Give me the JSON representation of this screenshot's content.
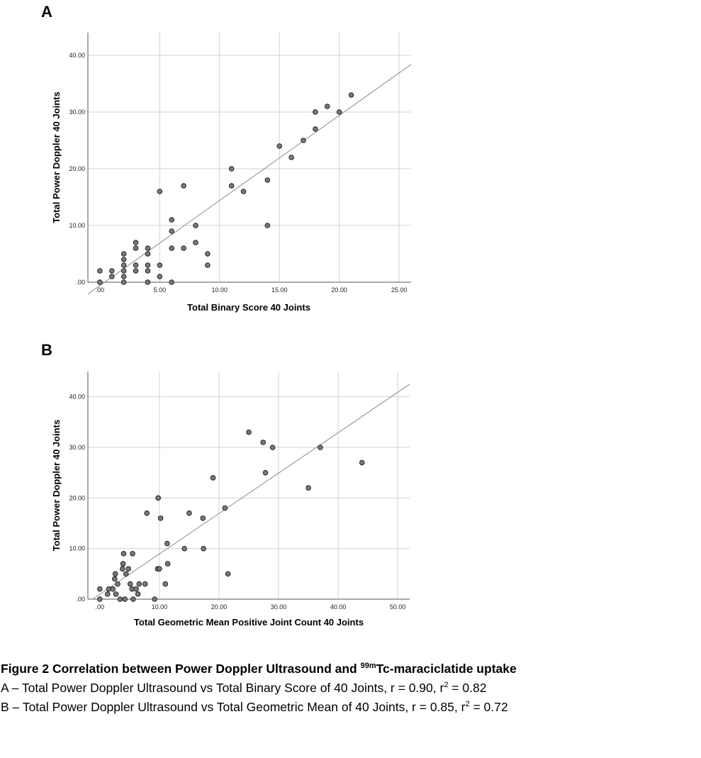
{
  "panels": {
    "a_label": "A",
    "b_label": "B"
  },
  "chart_data": [
    {
      "type": "scatter",
      "xlabel": "Total Binary Score 40 Joints",
      "ylabel": "Total Power Doppler 40 Joints",
      "xlim": [
        -1,
        26
      ],
      "ylim": [
        0,
        44
      ],
      "xticks": [
        0,
        5,
        10,
        15,
        20,
        25
      ],
      "xtick_labels": [
        ".00",
        "5.00",
        "10.00",
        "15.00",
        "20.00",
        "25.00"
      ],
      "yticks": [
        0,
        10,
        20,
        30,
        40
      ],
      "ytick_labels": [
        ".00",
        "10.00",
        "20.00",
        "30.00",
        "40.00"
      ],
      "grid": true,
      "fit_line": {
        "x0": -1,
        "y0": -2.1,
        "x1": 26,
        "y1": 38.4
      },
      "points": [
        [
          0,
          2
        ],
        [
          0,
          0
        ],
        [
          1,
          2
        ],
        [
          1,
          1
        ],
        [
          2,
          5
        ],
        [
          2,
          4
        ],
        [
          2,
          3
        ],
        [
          2,
          2
        ],
        [
          2,
          1
        ],
        [
          2,
          0
        ],
        [
          3,
          7
        ],
        [
          3,
          6
        ],
        [
          3,
          3
        ],
        [
          3,
          2
        ],
        [
          4,
          6
        ],
        [
          4,
          5
        ],
        [
          4,
          3
        ],
        [
          4,
          2
        ],
        [
          4,
          0
        ],
        [
          5,
          16
        ],
        [
          5,
          3
        ],
        [
          5,
          1
        ],
        [
          6,
          11
        ],
        [
          6,
          9
        ],
        [
          6,
          6
        ],
        [
          6,
          0
        ],
        [
          7,
          17
        ],
        [
          7,
          6
        ],
        [
          8,
          10
        ],
        [
          8,
          7
        ],
        [
          9,
          5
        ],
        [
          9,
          3
        ],
        [
          11,
          20
        ],
        [
          11,
          17
        ],
        [
          12,
          16
        ],
        [
          14,
          18
        ],
        [
          14,
          10
        ],
        [
          15,
          24
        ],
        [
          16,
          22
        ],
        [
          17,
          25
        ],
        [
          18,
          30
        ],
        [
          18,
          27
        ],
        [
          19,
          31
        ],
        [
          20,
          30
        ],
        [
          21,
          33
        ]
      ]
    },
    {
      "type": "scatter",
      "xlabel": "Total Geometric Mean Positive Joint Count 40 Joints",
      "ylabel": "Total Power Doppler 40 Joints",
      "xlim": [
        -2,
        52
      ],
      "ylim": [
        0,
        45
      ],
      "xticks": [
        0,
        10,
        20,
        30,
        40,
        50
      ],
      "xtick_labels": [
        ".00",
        "10.00",
        "20.00",
        "30.00",
        "40.00",
        "50.00"
      ],
      "yticks": [
        0,
        10,
        20,
        30,
        40
      ],
      "ytick_labels": [
        ".00",
        "10.00",
        "20.00",
        "30.00",
        "40.00"
      ],
      "grid": true,
      "fit_line": {
        "x0": -1.2,
        "y0": 0,
        "x1": 52,
        "y1": 42.5
      },
      "points": [
        [
          0,
          2
        ],
        [
          0,
          0
        ],
        [
          1.3,
          1
        ],
        [
          1.5,
          2
        ],
        [
          2.2,
          2
        ],
        [
          2.5,
          4
        ],
        [
          2.6,
          5
        ],
        [
          2.7,
          1
        ],
        [
          3,
          3
        ],
        [
          3.4,
          0
        ],
        [
          3.8,
          6
        ],
        [
          3.9,
          7
        ],
        [
          4,
          9
        ],
        [
          4.2,
          0
        ],
        [
          4.4,
          5
        ],
        [
          4.8,
          6
        ],
        [
          5.1,
          3
        ],
        [
          5.4,
          2
        ],
        [
          5.5,
          9
        ],
        [
          5.6,
          0
        ],
        [
          6.1,
          2
        ],
        [
          6.4,
          1
        ],
        [
          6.6,
          3
        ],
        [
          7.6,
          3
        ],
        [
          7.9,
          17
        ],
        [
          9.2,
          0
        ],
        [
          9.7,
          6
        ],
        [
          9.8,
          20
        ],
        [
          10,
          6
        ],
        [
          10.2,
          16
        ],
        [
          11,
          3
        ],
        [
          11.3,
          11
        ],
        [
          11.4,
          7
        ],
        [
          14.2,
          10
        ],
        [
          15,
          17
        ],
        [
          17.3,
          16
        ],
        [
          17.4,
          10
        ],
        [
          19,
          24
        ],
        [
          21,
          18
        ],
        [
          21.5,
          5
        ],
        [
          25,
          33
        ],
        [
          27.4,
          31
        ],
        [
          27.8,
          25
        ],
        [
          29,
          30
        ],
        [
          35,
          22
        ],
        [
          37,
          30
        ],
        [
          44,
          27
        ]
      ]
    }
  ],
  "caption": {
    "figure_label": "Figure 2",
    "title_pre": "Correlation between Power Doppler Ultrasound and ",
    "title_sup": "99m",
    "title_post": "Tc-maraciclatide uptake",
    "line_a_pre": "A – Total Power Doppler Ultrasound vs Total Binary Score of 40 Joints, r = 0.90, r",
    "line_a_sup": "2",
    "line_a_post": " = 0.82",
    "line_b_pre": "B – Total Power Doppler Ultrasound vs Total Geometric Mean of 40 Joints, r = 0.85, r",
    "line_b_sup": "2",
    "line_b_post": " = 0.72"
  }
}
